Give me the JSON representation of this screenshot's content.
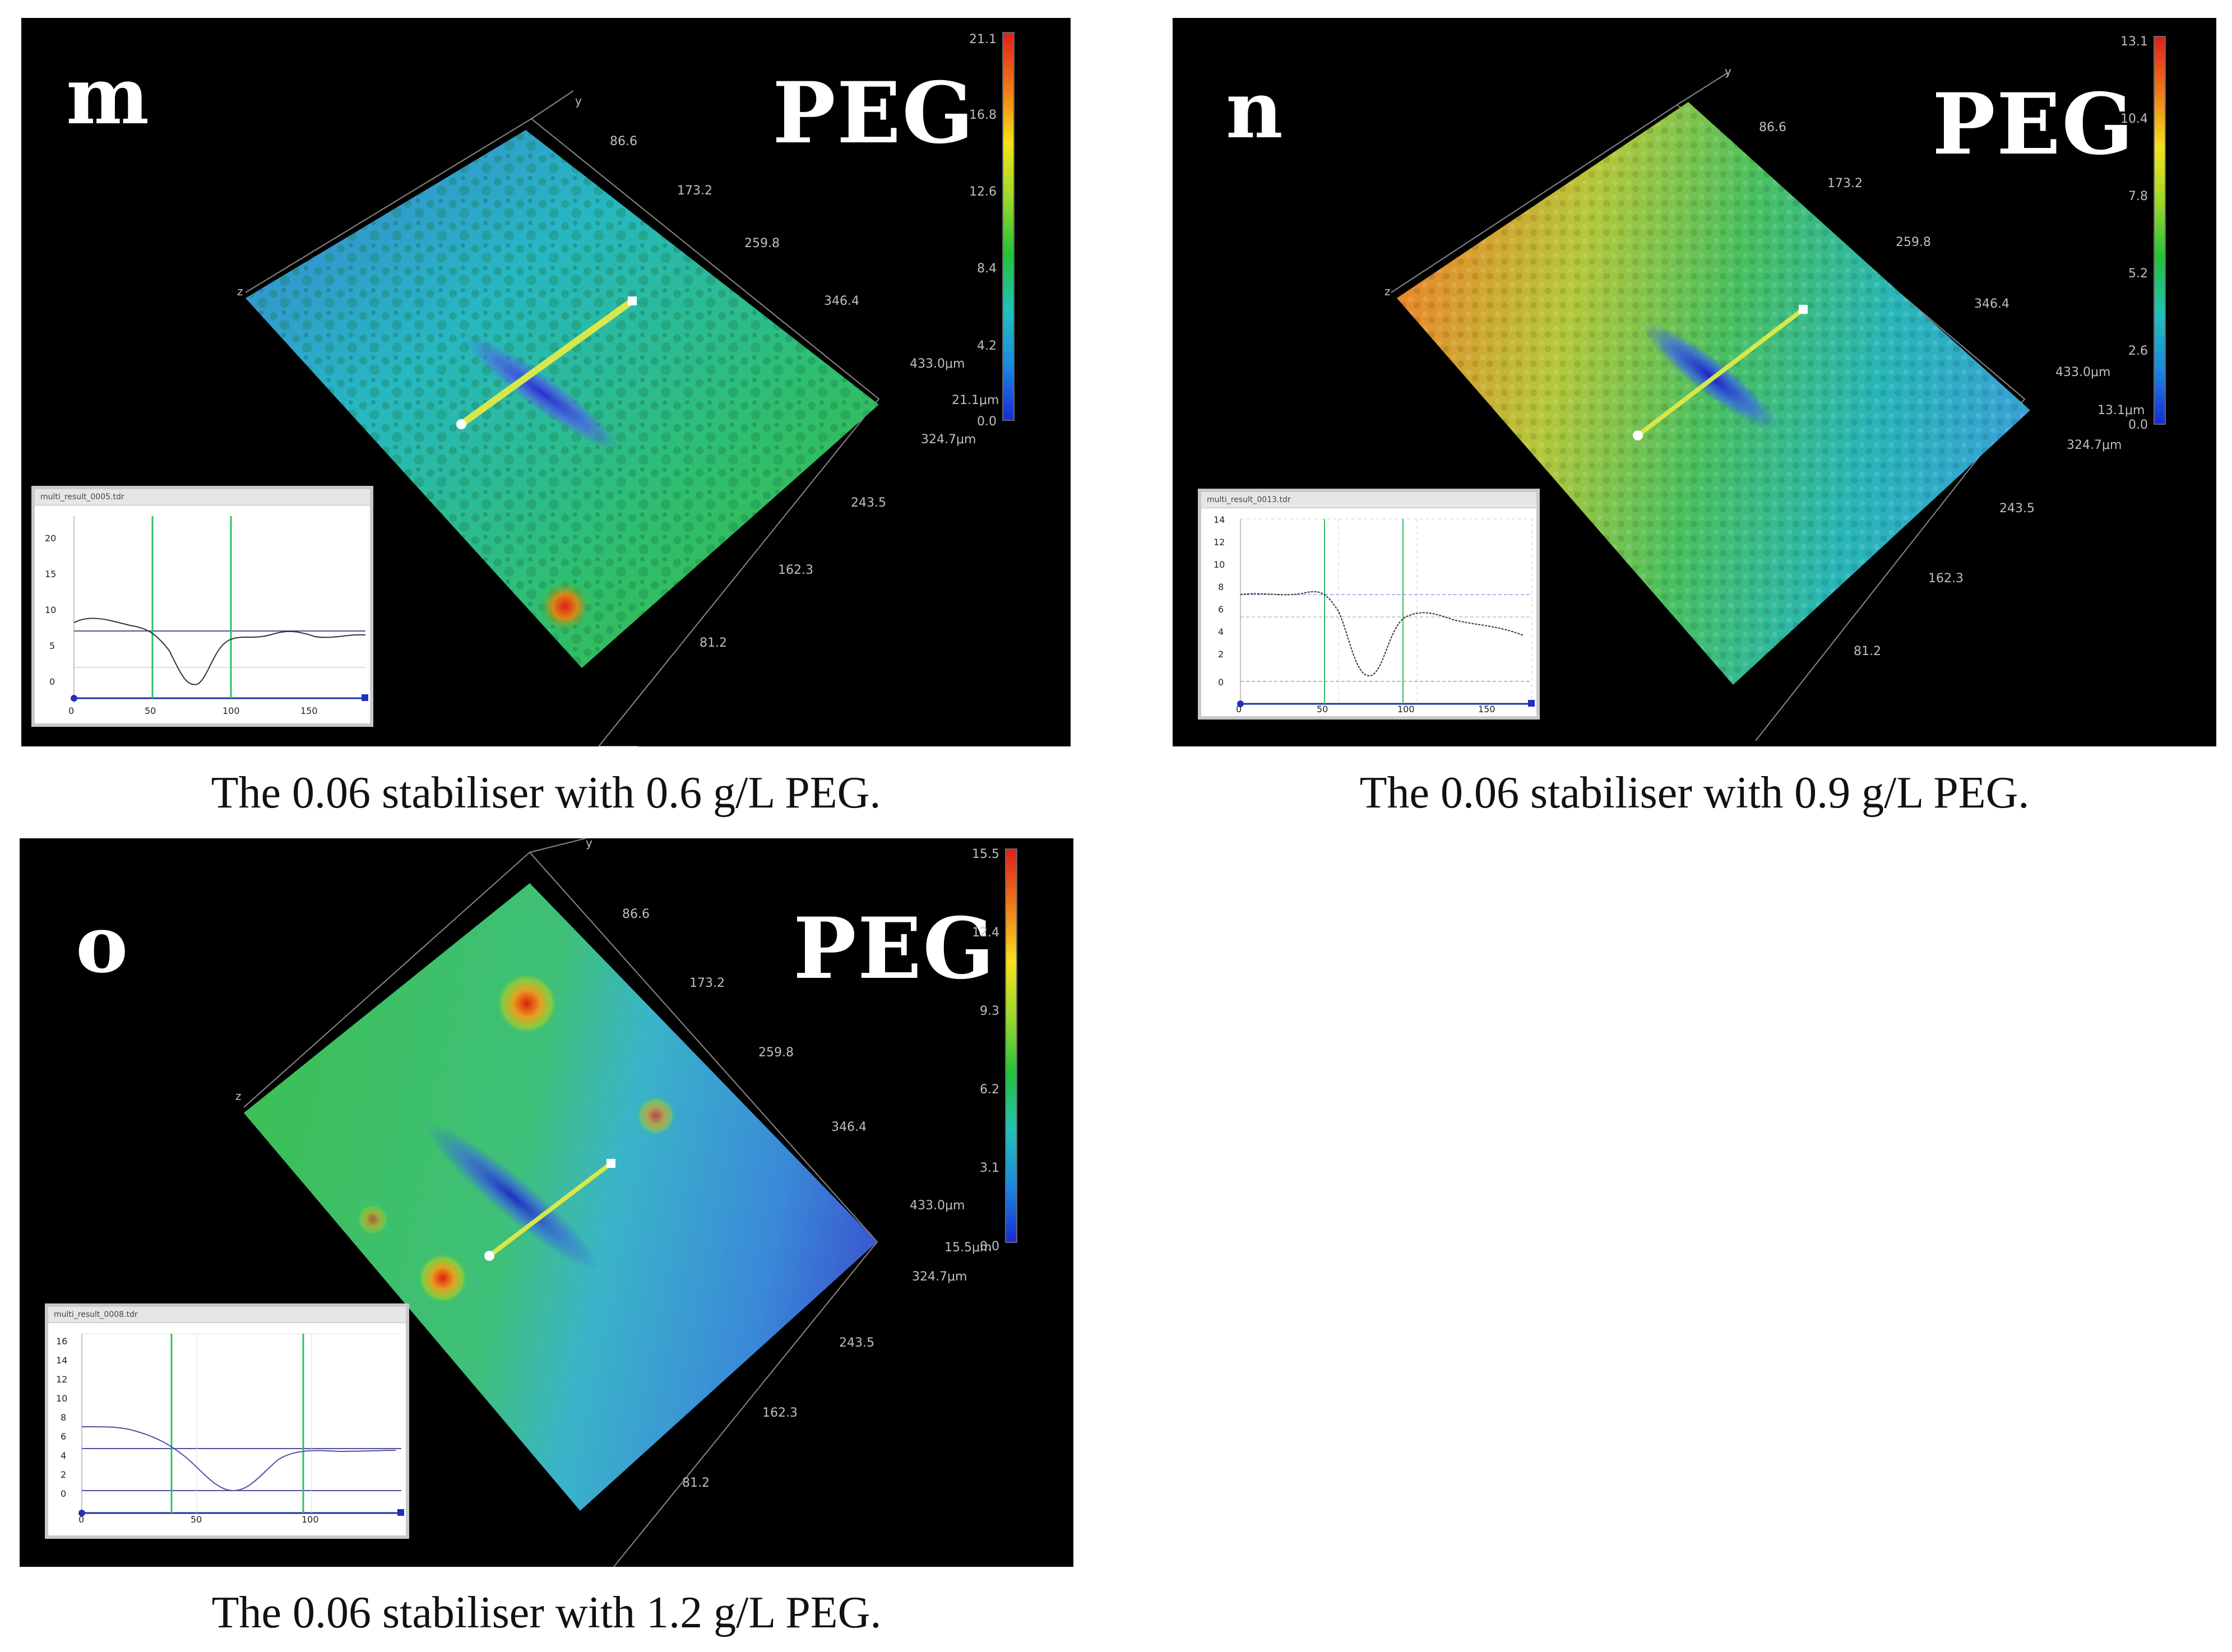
{
  "panels": {
    "m": {
      "letter": "m",
      "tag": "PEG",
      "caption": "The 0.06 stabiliser with 0.6 g/L PEG.",
      "y_axis_ticks": [
        "86.6",
        "173.2",
        "259.8",
        "346.4",
        "433.0μm"
      ],
      "x_axis_ticks": [
        "324.7μm",
        "243.5",
        "162.3",
        "81.2"
      ],
      "axis_letters": [
        "y",
        "z"
      ],
      "z_readout": "21.1μm",
      "colorbar_labels": [
        "21.1",
        "16.8",
        "12.6",
        "8.4",
        "4.2",
        "0.0"
      ],
      "profile": {
        "title": "multi_result_0005.tdr",
        "y_ticks": [
          "20",
          "15",
          "10",
          "5",
          "0"
        ],
        "x_ticks": [
          "0",
          "50",
          "100",
          "150"
        ]
      }
    },
    "n": {
      "letter": "n",
      "tag": "PEG",
      "caption": "The 0.06 stabiliser with 0.9 g/L PEG.",
      "y_axis_ticks": [
        "86.6",
        "173.2",
        "259.8",
        "346.4",
        "433.0μm"
      ],
      "x_axis_ticks": [
        "324.7μm",
        "243.5",
        "162.3",
        "81.2"
      ],
      "axis_letters": [
        "y",
        "z"
      ],
      "z_readout": "13.1μm",
      "colorbar_labels": [
        "13.1",
        "10.4",
        "7.8",
        "5.2",
        "2.6",
        "0.0"
      ],
      "profile": {
        "title": "multi_result_0013.tdr",
        "y_ticks": [
          "14",
          "12",
          "10",
          "8",
          "6",
          "4",
          "2",
          "0"
        ],
        "x_ticks": [
          "0",
          "50",
          "100",
          "150"
        ]
      }
    },
    "o": {
      "letter": "o",
      "tag": "PEG",
      "caption": "The 0.06 stabiliser with 1.2 g/L PEG.",
      "y_axis_ticks": [
        "86.6",
        "173.2",
        "259.8",
        "346.4",
        "433.0μm"
      ],
      "x_axis_ticks": [
        "324.7μm",
        "243.5",
        "162.3",
        "81.2"
      ],
      "axis_letters": [
        "y",
        "z"
      ],
      "z_readout": "15.5μm",
      "colorbar_labels": [
        "15.5",
        "12.4",
        "9.3",
        "6.2",
        "3.1",
        "0.0"
      ],
      "profile": {
        "title": "multi_result_0008.tdr",
        "y_ticks": [
          "16",
          "14",
          "12",
          "10",
          "8",
          "6",
          "4",
          "2",
          "0"
        ],
        "x_ticks": [
          "0",
          "50",
          "100"
        ]
      }
    }
  }
}
